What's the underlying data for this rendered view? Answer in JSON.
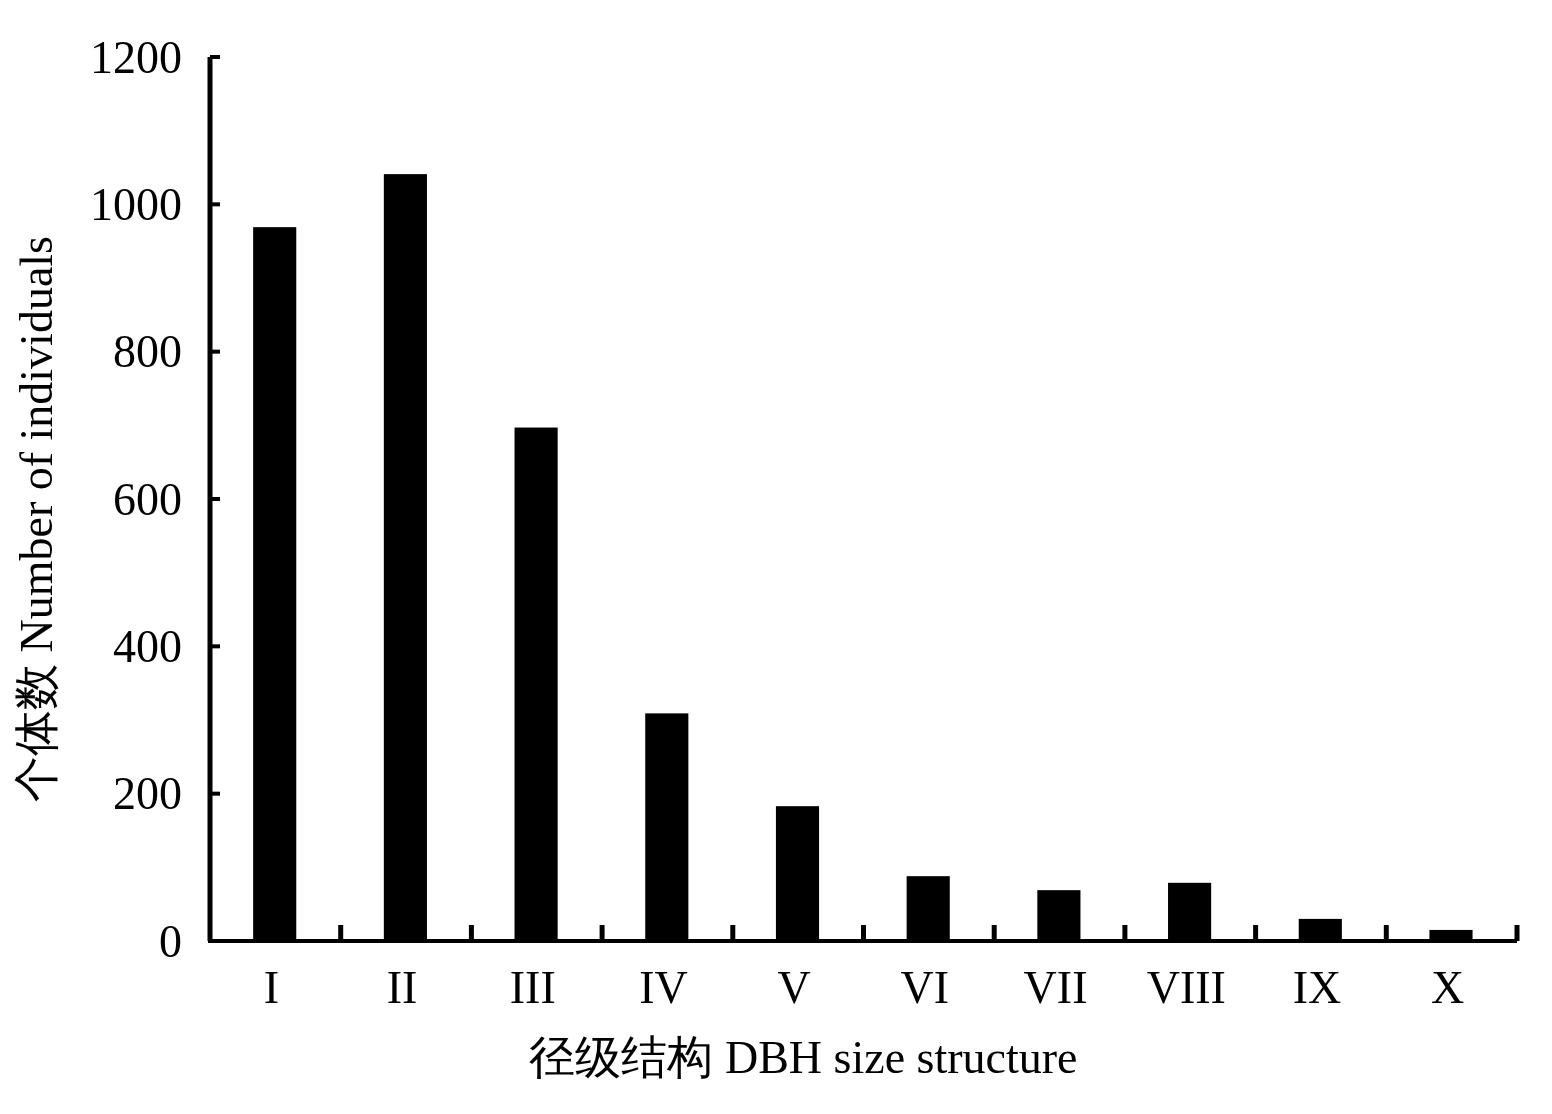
{
  "chart_data": {
    "type": "bar",
    "xlabel": "径级结构 DBH size structure",
    "ylabel": "个体数 Number of individuals",
    "categories": [
      "I",
      "II",
      "III",
      "IV",
      "V",
      "VI",
      "VII",
      "VIII",
      "IX",
      "X"
    ],
    "values": [
      969,
      1041,
      697,
      309,
      183,
      88,
      69,
      79,
      30,
      15
    ],
    "color": "#000000",
    "ylim": [
      0,
      1200
    ],
    "yticks": [
      0,
      200,
      400,
      600,
      800,
      1000,
      1200
    ],
    "grid": false
  }
}
